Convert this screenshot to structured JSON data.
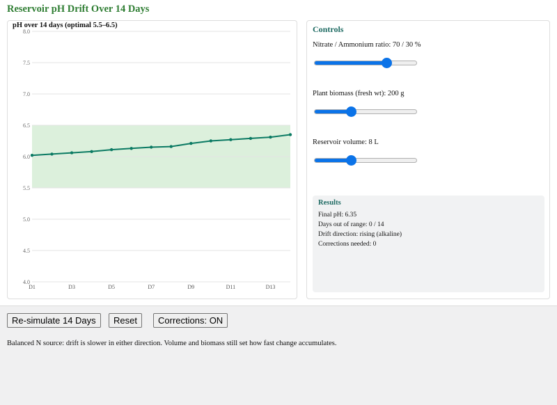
{
  "page": {
    "title": "Reservoir pH Drift Over 14 Days"
  },
  "chart_data": {
    "type": "line",
    "title": "pH over 14 days (optimal 5.5–6.5)",
    "categories": [
      "D1",
      "D2",
      "D3",
      "D4",
      "D5",
      "D6",
      "D7",
      "D8",
      "D9",
      "D10",
      "D11",
      "D12",
      "D13",
      "D14"
    ],
    "tick_labels": [
      "D1",
      "D3",
      "D5",
      "D7",
      "D9",
      "D11",
      "D13"
    ],
    "values": [
      6.02,
      6.04,
      6.06,
      6.08,
      6.11,
      6.13,
      6.15,
      6.16,
      6.21,
      6.25,
      6.27,
      6.29,
      6.31,
      6.35
    ],
    "ylim": [
      4.0,
      8.0
    ],
    "yticks": [
      "8.0",
      "7.5",
      "7.0",
      "6.5",
      "6.0",
      "5.5",
      "5.0",
      "4.5",
      "4.0"
    ],
    "optimal_band": [
      5.5,
      6.5
    ],
    "line_color": "#0b7a63",
    "band_color": "#dcf0dc",
    "grid": true
  },
  "controls": {
    "title": "Controls",
    "sliders": [
      {
        "label": "Nitrate / Ammonium ratio: 70 / 30 %",
        "value": 0.7
      },
      {
        "label": "Plant biomass (fresh wt): 200 g",
        "value": 0.36
      },
      {
        "label": "Reservoir volume: 8 L",
        "value": 0.36
      }
    ]
  },
  "results": {
    "title": "Results",
    "final_ph": "Final pH: 6.35",
    "days_out": "Days out of range: 0 / 14",
    "drift": "Drift direction: rising (alkaline)",
    "corrections": "Corrections needed: 0"
  },
  "buttons": {
    "resimulate": "Re-simulate 14 Days",
    "reset": "Reset",
    "corrections": "Corrections: ON"
  },
  "note": "Balanced N source: drift is slower in either direction. Volume and biomass still set how fast change accumulates."
}
